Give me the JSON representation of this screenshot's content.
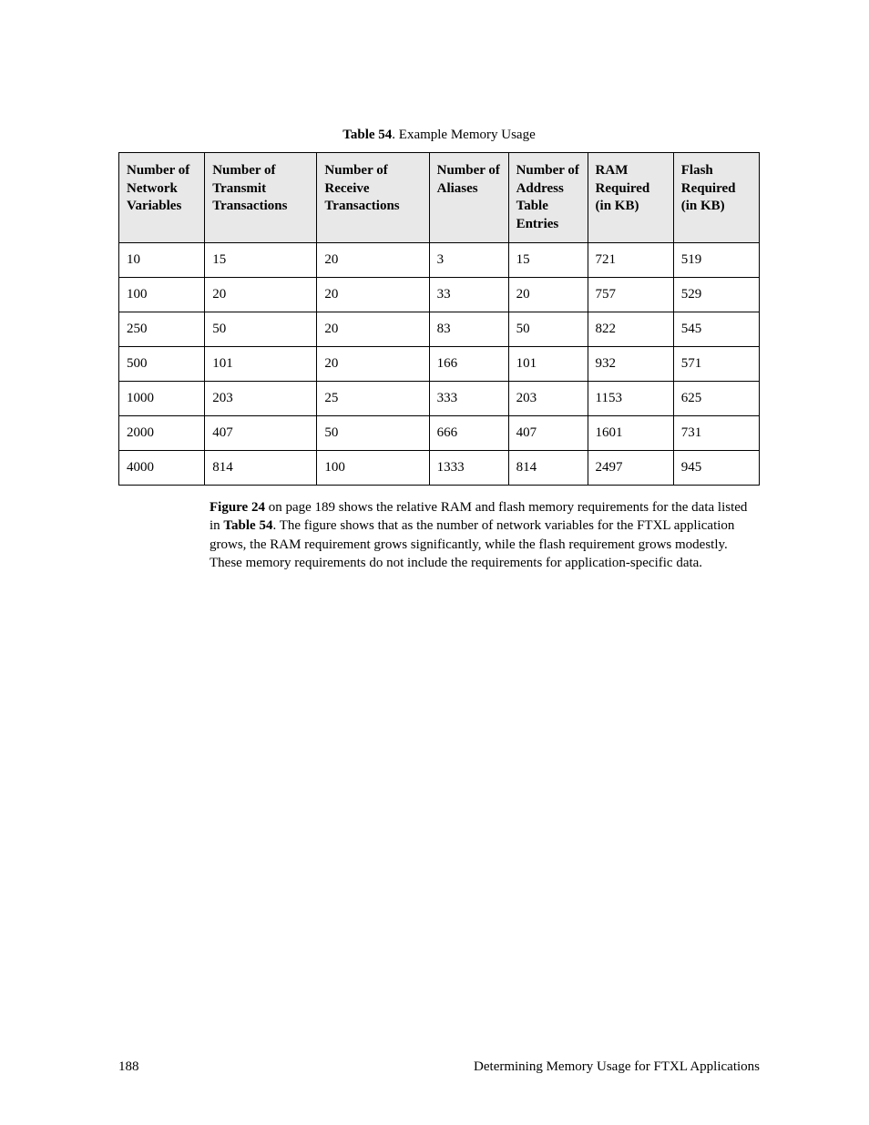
{
  "caption": {
    "label": "Table 54",
    "text": ". Example Memory Usage"
  },
  "table": {
    "columns": [
      "Number of Network Variables",
      "Number of Transmit Transactions",
      "Number of Receive Transactions",
      "Number of Aliases",
      "Number of Address Table Entries",
      "RAM Required (in KB)",
      "Flash Required (in KB)"
    ],
    "rows": [
      [
        "10",
        "15",
        "20",
        "3",
        "15",
        "721",
        "519"
      ],
      [
        "100",
        "20",
        "20",
        "33",
        "20",
        "757",
        "529"
      ],
      [
        "250",
        "50",
        "20",
        "83",
        "50",
        "822",
        "545"
      ],
      [
        "500",
        "101",
        "20",
        "166",
        "101",
        "932",
        "571"
      ],
      [
        "1000",
        "203",
        "25",
        "333",
        "203",
        "1153",
        "625"
      ],
      [
        "2000",
        "407",
        "50",
        "666",
        "407",
        "1601",
        "731"
      ],
      [
        "4000",
        "814",
        "100",
        "1333",
        "814",
        "2497",
        "945"
      ]
    ],
    "col_widths": [
      "13%",
      "17%",
      "17%",
      "12%",
      "12%",
      "13%",
      "13%"
    ]
  },
  "paragraph": {
    "bold1": "Figure 24",
    "seg1": " on page 189 shows the relative RAM and flash memory requirements for the data listed in ",
    "bold2": "Table 54",
    "seg2": ".  The figure shows that as the number of network variables for the FTXL application grows, the RAM requirement grows significantly, while the flash requirement grows modestly.  These memory requirements do not include the requirements for application-specific data."
  },
  "footer": {
    "page_number": "188",
    "title": "Determining Memory Usage for FTXL Applications"
  }
}
